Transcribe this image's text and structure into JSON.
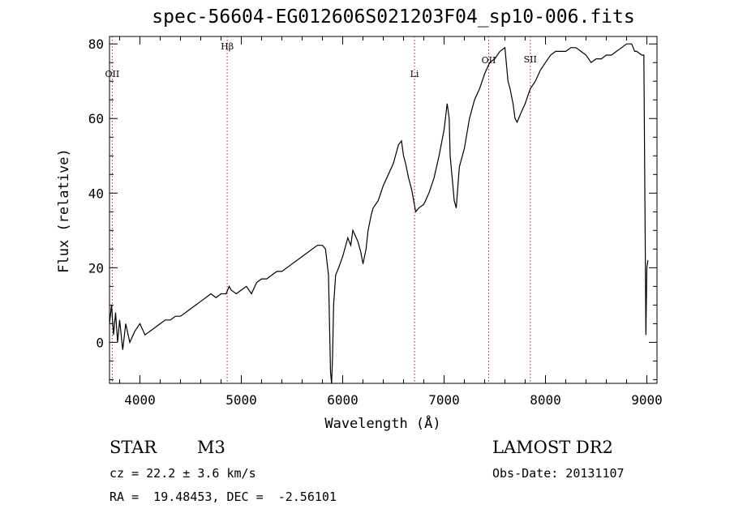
{
  "title": "spec-56604-EG012606S021203F04_sp10-006.fits",
  "footer": {
    "class_label": "STAR",
    "subclass": "M3",
    "survey": "LAMOST DR2",
    "cz": "cz = 22.2 ± 3.6 km/s",
    "obs_date": "Obs-Date: 20131107",
    "coords": "RA =  19.48453, DEC =  -2.56101"
  },
  "chart_data": {
    "type": "line",
    "title": "spec-56604-EG012606S021203F04_sp10-006.fits",
    "xlabel": "Wavelength (Å)",
    "ylabel": "Flux (relative)",
    "xlim": [
      3700,
      9100
    ],
    "ylim": [
      -11,
      82
    ],
    "xticks": [
      4000,
      5000,
      6000,
      7000,
      8000,
      9000
    ],
    "yticks": [
      0,
      20,
      40,
      60,
      80
    ],
    "grid": false,
    "line_color": "#000000",
    "marker_color": "#b22222",
    "lines": [
      {
        "label": "OII",
        "x": 3727
      },
      {
        "label": "Hβ",
        "x": 4861
      },
      {
        "label": "Li",
        "x": 6708
      },
      {
        "label": "OII",
        "x": 7440
      },
      {
        "label": "SII",
        "x": 7850
      }
    ],
    "series": [
      {
        "x": [
          3700,
          3720,
          3740,
          3760,
          3780,
          3800,
          3830,
          3860,
          3900,
          3950,
          4000,
          4050,
          4100,
          4150,
          4200,
          4250,
          4300,
          4350,
          4400,
          4450,
          4500,
          4550,
          4600,
          4650,
          4700,
          4750,
          4800,
          4850,
          4880,
          4900,
          4950,
          5000,
          5050,
          5100,
          5150,
          5200,
          5250,
          5300,
          5350,
          5400,
          5450,
          5500,
          5550,
          5600,
          5650,
          5700,
          5750,
          5800,
          5830,
          5860,
          5880,
          5890,
          5900,
          5910,
          5930,
          5960,
          6000,
          6050,
          6080,
          6100,
          6150,
          6180,
          6200,
          6230,
          6250,
          6280,
          6300,
          6350,
          6400,
          6450,
          6500,
          6550,
          6580,
          6600,
          6620,
          6650,
          6680,
          6700,
          6720,
          6750,
          6800,
          6850,
          6900,
          6950,
          7000,
          7030,
          7050,
          7060,
          7080,
          7100,
          7120,
          7150,
          7200,
          7250,
          7300,
          7350,
          7400,
          7450,
          7500,
          7550,
          7600,
          7630,
          7650,
          7680,
          7700,
          7720,
          7750,
          7800,
          7850,
          7900,
          7950,
          8000,
          8050,
          8100,
          8150,
          8200,
          8250,
          8300,
          8350,
          8400,
          8450,
          8500,
          8550,
          8600,
          8650,
          8700,
          8750,
          8800,
          8850,
          8880,
          8900,
          8950,
          8970,
          8990,
          9000,
          9010
        ],
        "values": [
          5,
          10,
          2,
          8,
          0,
          6,
          -2,
          5,
          0,
          3,
          5,
          2,
          3,
          4,
          5,
          6,
          6,
          7,
          7,
          8,
          9,
          10,
          11,
          12,
          13,
          12,
          13,
          13,
          15,
          14,
          13,
          14,
          15,
          13,
          16,
          17,
          17,
          18,
          19,
          19,
          20,
          21,
          22,
          23,
          24,
          25,
          26,
          26,
          25,
          18,
          -8,
          -12,
          -4,
          10,
          18,
          20,
          23,
          28,
          26,
          30,
          27,
          24,
          21,
          25,
          30,
          34,
          36,
          38,
          42,
          45,
          48,
          53,
          54,
          50,
          48,
          44,
          41,
          38,
          35,
          36,
          37,
          40,
          44,
          50,
          57,
          64,
          60,
          50,
          44,
          38,
          36,
          47,
          52,
          60,
          65,
          68,
          72,
          75,
          76,
          78,
          79,
          70,
          68,
          64,
          60,
          59,
          61,
          64,
          68,
          70,
          73,
          75,
          77,
          78,
          78,
          78,
          79,
          79,
          78,
          77,
          75,
          76,
          76,
          77,
          77,
          78,
          79,
          80,
          80,
          78,
          78,
          77,
          77,
          2,
          20,
          22
        ]
      }
    ]
  }
}
